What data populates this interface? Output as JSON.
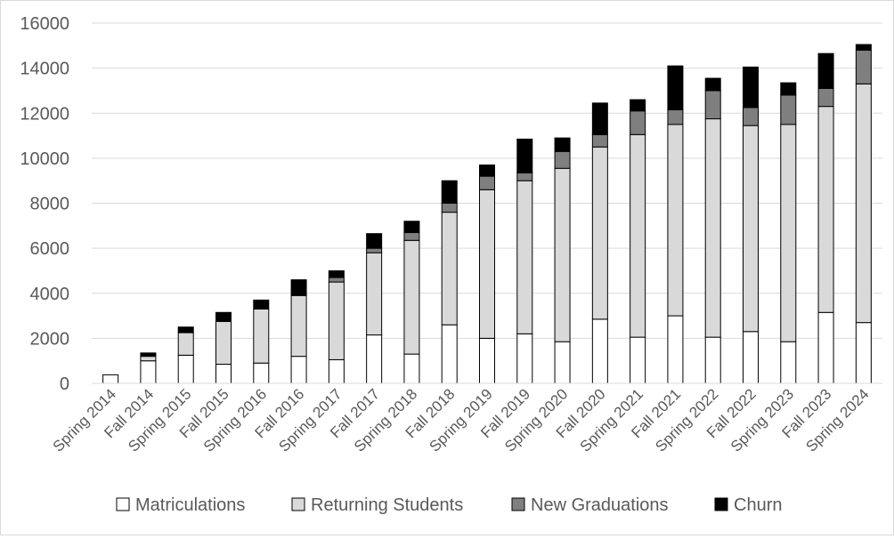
{
  "chart_data": {
    "type": "bar",
    "stacked": true,
    "title": "",
    "xlabel": "",
    "ylabel": "",
    "ylim": [
      0,
      16000
    ],
    "yticks": [
      0,
      2000,
      4000,
      6000,
      8000,
      10000,
      12000,
      14000,
      16000
    ],
    "grid": true,
    "legend_position": "bottom",
    "categories": [
      "Spring 2014",
      "Fall 2014",
      "Spring 2015",
      "Fall 2015",
      "Spring 2016",
      "Fall 2016",
      "Spring 2017",
      "Fall 2017",
      "Spring 2018",
      "Fall 2018",
      "Spring 2019",
      "Fall 2019",
      "Spring 2020",
      "Fall 2020",
      "Spring 2021",
      "Fall 2021",
      "Spring 2022",
      "Fall 2022",
      "Spring 2023",
      "Fall 2023",
      "Spring 2024"
    ],
    "series": [
      {
        "name": "Matriculations",
        "color": "#ffffff",
        "values": [
          380,
          1000,
          1250,
          850,
          900,
          1200,
          1050,
          2150,
          1300,
          2600,
          2000,
          2200,
          1850,
          2850,
          2050,
          3000,
          2050,
          2300,
          1850,
          3150,
          2700
        ]
      },
      {
        "name": "Returning Students",
        "color": "#d9d9d9",
        "values": [
          0,
          200,
          1000,
          1900,
          2400,
          2700,
          3450,
          3650,
          5050,
          5000,
          6600,
          6800,
          7700,
          7650,
          9000,
          8500,
          9700,
          9150,
          9650,
          9150,
          10600
        ]
      },
      {
        "name": "New Graduations",
        "color": "#7f7f7f",
        "values": [
          0,
          0,
          0,
          0,
          0,
          0,
          200,
          200,
          350,
          400,
          600,
          350,
          750,
          550,
          1050,
          650,
          1250,
          800,
          1300,
          800,
          1500
        ]
      },
      {
        "name": "Churn",
        "color": "#000000",
        "values": [
          0,
          150,
          250,
          400,
          400,
          700,
          300,
          650,
          500,
          1000,
          500,
          1500,
          600,
          1400,
          500,
          1950,
          550,
          1800,
          550,
          1550,
          250
        ]
      }
    ]
  }
}
